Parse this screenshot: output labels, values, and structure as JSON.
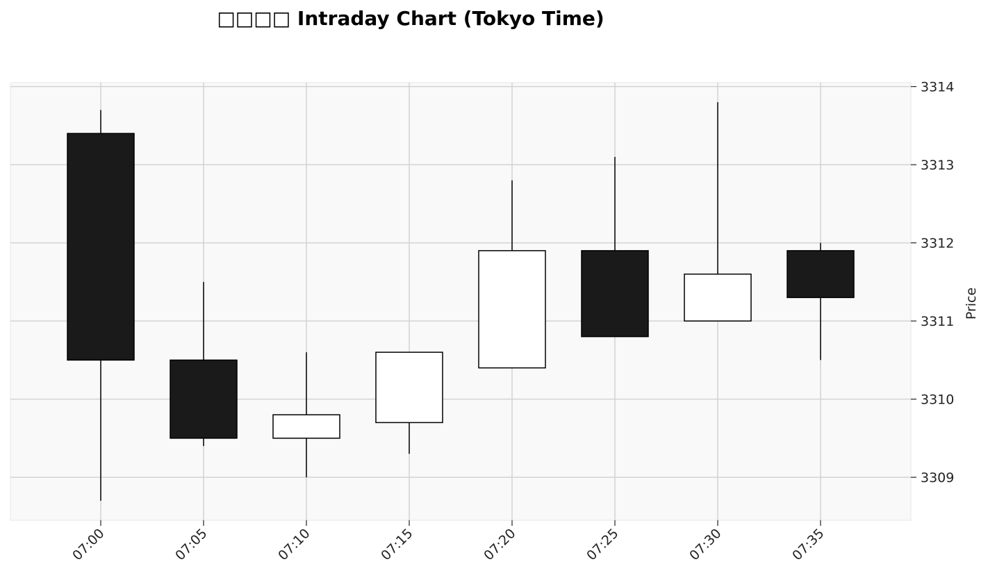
{
  "chart_data": {
    "type": "candlestick",
    "title": "□□□□ Intraday Chart (Tokyo Time)",
    "xlabel": "",
    "ylabel": "Price",
    "ylim": [
      3308.45,
      3314.05
    ],
    "yticks": [
      3309,
      3310,
      3311,
      3312,
      3313,
      3314
    ],
    "grid": true,
    "y_axis_side": "right",
    "colors": {
      "up_fill": "#ffffff",
      "down_fill": "#1a1a1a",
      "edge": "#000000",
      "plot_bg": "#f9f9f9",
      "grid": "#d3d3d3"
    },
    "candles": [
      {
        "time": "07:00",
        "open": 3313.4,
        "high": 3313.7,
        "low": 3308.7,
        "close": 3310.5
      },
      {
        "time": "07:05",
        "open": 3310.5,
        "high": 3311.5,
        "low": 3309.4,
        "close": 3309.5
      },
      {
        "time": "07:10",
        "open": 3309.5,
        "high": 3310.6,
        "low": 3309.0,
        "close": 3309.8
      },
      {
        "time": "07:15",
        "open": 3309.7,
        "high": 3310.6,
        "low": 3309.3,
        "close": 3310.6
      },
      {
        "time": "07:20",
        "open": 3310.4,
        "high": 3312.8,
        "low": 3310.4,
        "close": 3311.9
      },
      {
        "time": "07:25",
        "open": 3311.9,
        "high": 3313.1,
        "low": 3310.8,
        "close": 3310.8
      },
      {
        "time": "07:30",
        "open": 3311.0,
        "high": 3313.8,
        "low": 3311.0,
        "close": 3311.6
      },
      {
        "time": "07:35",
        "open": 3311.9,
        "high": 3312.0,
        "low": 3310.5,
        "close": 3311.3
      }
    ]
  }
}
